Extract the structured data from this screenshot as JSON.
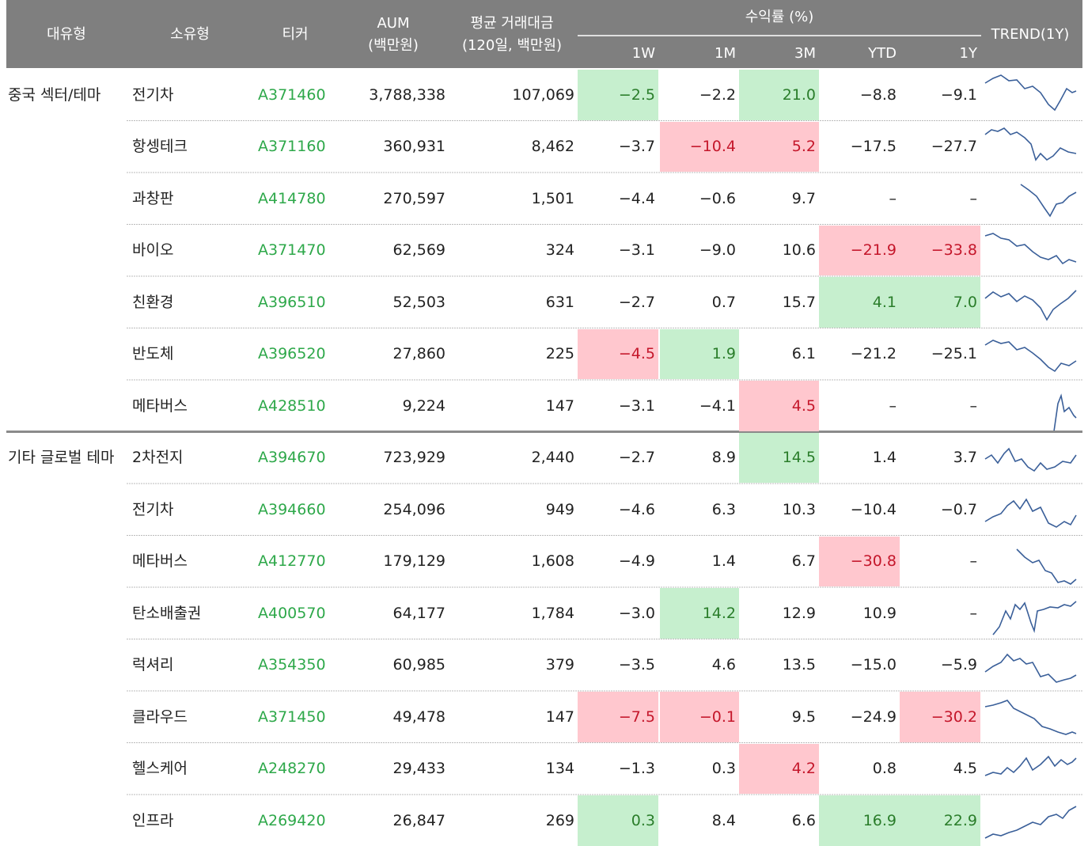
{
  "header": {
    "group": "대유형",
    "subgroup": "소유형",
    "ticker": "티커",
    "aum": [
      "AUM",
      "(백만원)"
    ],
    "volume": [
      "평균 거래대금",
      "(120일, 백만원)"
    ],
    "returns": "수익률 (%)",
    "periods": [
      "1W",
      "1M",
      "3M",
      "YTD",
      "1Y"
    ],
    "trend": "TREND(1Y)"
  },
  "groups": [
    {
      "name": "중국 섹터/테마",
      "rows": [
        {
          "name": "전기차",
          "ticker": "A371460",
          "aum": "3,788,338",
          "volume": "107,069",
          "returns": [
            "−2.5",
            "−2.2",
            "21.0",
            "−8.8",
            "−9.1"
          ],
          "green": [
            0,
            2
          ],
          "red": []
        },
        {
          "name": "항셍테크",
          "ticker": "A371160",
          "aum": "360,931",
          "volume": "8,462",
          "returns": [
            "−3.7",
            "−10.4",
            "5.2",
            "−17.5",
            "−27.7"
          ],
          "green": [],
          "red": [
            1,
            2
          ]
        },
        {
          "name": "과창판",
          "ticker": "A414780",
          "aum": "270,597",
          "volume": "1,501",
          "returns": [
            "−4.4",
            "−0.6",
            "9.7",
            "–",
            "–"
          ],
          "green": [],
          "red": []
        },
        {
          "name": "바이오",
          "ticker": "A371470",
          "aum": "62,569",
          "volume": "324",
          "returns": [
            "−3.1",
            "−9.0",
            "10.6",
            "−21.9",
            "−33.8"
          ],
          "green": [],
          "red": [
            3,
            4
          ]
        },
        {
          "name": "친환경",
          "ticker": "A396510",
          "aum": "52,503",
          "volume": "631",
          "returns": [
            "−2.7",
            "0.7",
            "15.7",
            "4.1",
            "7.0"
          ],
          "green": [
            3,
            4
          ],
          "red": []
        },
        {
          "name": "반도체",
          "ticker": "A396520",
          "aum": "27,860",
          "volume": "225",
          "returns": [
            "−4.5",
            "1.9",
            "6.1",
            "−21.2",
            "−25.1"
          ],
          "green": [
            1
          ],
          "red": [
            0
          ]
        },
        {
          "name": "메타버스",
          "ticker": "A428510",
          "aum": "9,224",
          "volume": "147",
          "returns": [
            "−3.1",
            "−4.1",
            "4.5",
            "–",
            "–"
          ],
          "green": [],
          "red": [
            2
          ]
        }
      ]
    },
    {
      "name": "기타 글로벌 테마",
      "rows": [
        {
          "name": "2차전지",
          "ticker": "A394670",
          "aum": "723,929",
          "volume": "2,440",
          "returns": [
            "−2.7",
            "8.9",
            "14.5",
            "1.4",
            "3.7"
          ],
          "green": [
            2
          ],
          "red": []
        },
        {
          "name": "전기차",
          "ticker": "A394660",
          "aum": "254,096",
          "volume": "949",
          "returns": [
            "−4.6",
            "6.3",
            "10.3",
            "−10.4",
            "−0.7"
          ],
          "green": [],
          "red": []
        },
        {
          "name": "메타버스",
          "ticker": "A412770",
          "aum": "179,129",
          "volume": "1,608",
          "returns": [
            "−4.9",
            "1.4",
            "6.7",
            "−30.8",
            "–"
          ],
          "green": [],
          "red": [
            3
          ]
        },
        {
          "name": "탄소배출권",
          "ticker": "A400570",
          "aum": "64,177",
          "volume": "1,784",
          "returns": [
            "−3.0",
            "14.2",
            "12.9",
            "10.9",
            "–"
          ],
          "green": [
            1
          ],
          "red": []
        },
        {
          "name": "럭셔리",
          "ticker": "A354350",
          "aum": "60,985",
          "volume": "379",
          "returns": [
            "−3.5",
            "4.6",
            "13.5",
            "−15.0",
            "−5.9"
          ],
          "green": [],
          "red": []
        },
        {
          "name": "클라우드",
          "ticker": "A371450",
          "aum": "49,478",
          "volume": "147",
          "returns": [
            "−7.5",
            "−0.1",
            "9.5",
            "−24.9",
            "−30.2"
          ],
          "green": [],
          "red": [
            0,
            1,
            4
          ]
        },
        {
          "name": "헬스케어",
          "ticker": "A248270",
          "aum": "29,433",
          "volume": "134",
          "returns": [
            "−1.3",
            "0.3",
            "4.2",
            "0.8",
            "4.5"
          ],
          "green": [],
          "red": [
            2
          ]
        },
        {
          "name": "인프라",
          "ticker": "A269420",
          "aum": "26,847",
          "volume": "269",
          "returns": [
            "0.3",
            "8.4",
            "6.6",
            "16.9",
            "22.9"
          ],
          "green": [
            0,
            3,
            4
          ],
          "red": []
        }
      ]
    }
  ]
}
